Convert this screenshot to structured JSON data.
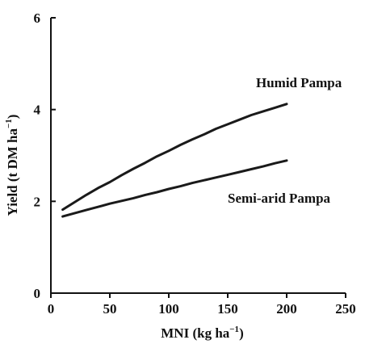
{
  "chart_data": {
    "type": "line",
    "xlabel": "MNI (kg ha",
    "xlabel_sup": "−1",
    "xlabel_end": ")",
    "ylabel": "Yield (t DM ha",
    "ylabel_sup": "−1",
    "ylabel_end": ")",
    "xlim": [
      0,
      250
    ],
    "ylim": [
      0,
      6
    ],
    "xticks": [
      0,
      50,
      100,
      150,
      200,
      250
    ],
    "yticks": [
      0,
      2,
      4,
      6
    ],
    "xtick_labels": [
      "0",
      "50",
      "100",
      "150",
      "200",
      "250"
    ],
    "ytick_labels": [
      "0",
      "2",
      "4",
      "6"
    ],
    "grid": false,
    "series": [
      {
        "name": "Humid Pampa",
        "x": [
          10,
          20,
          30,
          40,
          50,
          60,
          70,
          80,
          90,
          100,
          110,
          120,
          130,
          140,
          150,
          160,
          170,
          180,
          190,
          200
        ],
        "y": [
          1.82,
          1.98,
          2.14,
          2.29,
          2.42,
          2.57,
          2.71,
          2.84,
          2.98,
          3.1,
          3.23,
          3.35,
          3.46,
          3.58,
          3.68,
          3.78,
          3.88,
          3.96,
          4.04,
          4.12
        ]
      },
      {
        "name": "Semi-arid Pampa",
        "x": [
          10,
          20,
          30,
          40,
          50,
          60,
          70,
          80,
          90,
          100,
          110,
          120,
          130,
          140,
          150,
          160,
          170,
          180,
          190,
          200
        ],
        "y": [
          1.67,
          1.74,
          1.81,
          1.88,
          1.95,
          2.01,
          2.07,
          2.14,
          2.2,
          2.27,
          2.33,
          2.4,
          2.46,
          2.52,
          2.58,
          2.64,
          2.7,
          2.76,
          2.83,
          2.89
        ]
      }
    ]
  }
}
